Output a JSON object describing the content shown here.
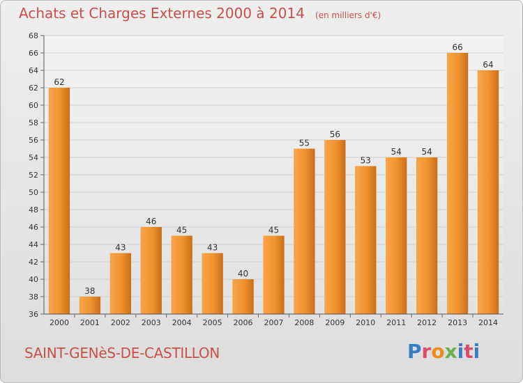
{
  "header": {
    "title": "Achats et Charges Externes 2000 à 2014",
    "subtitle": "(en milliers d'€)"
  },
  "footer": {
    "commune": "SAINT-GENèS-DE-CASTILLON",
    "brand": "Proxiti",
    "brand_colors": [
      "#3b7dc4",
      "#d94f6a",
      "#f08a1c",
      "#6ab04c",
      "#3b7dc4",
      "#d94f6a",
      "#3b7dc4"
    ]
  },
  "chart_data": {
    "type": "bar",
    "title": "Achats et Charges Externes 2000 à 2014",
    "subtitle": "(en milliers d'€)",
    "categories": [
      "2000",
      "2001",
      "2002",
      "2003",
      "2004",
      "2005",
      "2006",
      "2007",
      "2008",
      "2009",
      "2010",
      "2011",
      "2012",
      "2013",
      "2014"
    ],
    "values": [
      62,
      38,
      43,
      46,
      45,
      43,
      40,
      45,
      55,
      56,
      53,
      54,
      54,
      66,
      64
    ],
    "ylim": [
      36,
      68
    ],
    "yticks": [
      36,
      38,
      40,
      42,
      44,
      46,
      48,
      50,
      52,
      54,
      56,
      58,
      60,
      62,
      64,
      66,
      68
    ],
    "grid": true,
    "bar_color": "#f0922e",
    "data_labels": true
  }
}
